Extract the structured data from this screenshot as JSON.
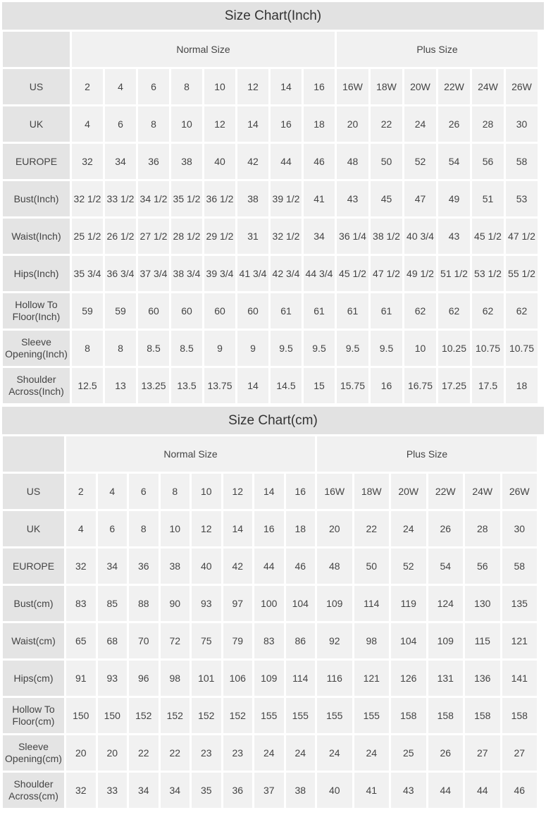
{
  "inch": {
    "title": "Size Chart(Inch)",
    "groups": {
      "normal": "Normal Size",
      "plus": "Plus Size"
    },
    "rows": [
      {
        "label": "US",
        "values": [
          "2",
          "4",
          "6",
          "8",
          "10",
          "12",
          "14",
          "16",
          "16W",
          "18W",
          "20W",
          "22W",
          "24W",
          "26W"
        ]
      },
      {
        "label": "UK",
        "values": [
          "4",
          "6",
          "8",
          "10",
          "12",
          "14",
          "16",
          "18",
          "20",
          "22",
          "24",
          "26",
          "28",
          "30"
        ]
      },
      {
        "label": "EUROPE",
        "values": [
          "32",
          "34",
          "36",
          "38",
          "40",
          "42",
          "44",
          "46",
          "48",
          "50",
          "52",
          "54",
          "56",
          "58"
        ]
      },
      {
        "label": "Bust(Inch)",
        "values": [
          "32 1/2",
          "33 1/2",
          "34 1/2",
          "35 1/2",
          "36 1/2",
          "38",
          "39 1/2",
          "41",
          "43",
          "45",
          "47",
          "49",
          "51",
          "53"
        ]
      },
      {
        "label": "Waist(Inch)",
        "values": [
          "25 1/2",
          "26 1/2",
          "27 1/2",
          "28 1/2",
          "29 1/2",
          "31",
          "32 1/2",
          "34",
          "36 1/4",
          "38 1/2",
          "40 3/4",
          "43",
          "45 1/2",
          "47 1/2"
        ]
      },
      {
        "label": "Hips(Inch)",
        "values": [
          "35 3/4",
          "36 3/4",
          "37 3/4",
          "38 3/4",
          "39 3/4",
          "41 3/4",
          "42 3/4",
          "44 3/4",
          "45 1/2",
          "47 1/2",
          "49 1/2",
          "51 1/2",
          "53 1/2",
          "55 1/2"
        ]
      },
      {
        "label": "Hollow To Floor(Inch)",
        "values": [
          "59",
          "59",
          "60",
          "60",
          "60",
          "60",
          "61",
          "61",
          "61",
          "61",
          "62",
          "62",
          "62",
          "62"
        ]
      },
      {
        "label": "Sleeve Opening(Inch)",
        "values": [
          "8",
          "8",
          "8.5",
          "8.5",
          "9",
          "9",
          "9.5",
          "9.5",
          "9.5",
          "9.5",
          "10",
          "10.25",
          "10.75",
          "10.75"
        ]
      },
      {
        "label": "Shoulder Across(Inch)",
        "values": [
          "12.5",
          "13",
          "13.25",
          "13.5",
          "13.75",
          "14",
          "14.5",
          "15",
          "15.75",
          "16",
          "16.75",
          "17.25",
          "17.5",
          "18"
        ]
      }
    ]
  },
  "cm": {
    "title": "Size Chart(cm)",
    "groups": {
      "normal": "Normal Size",
      "plus": "Plus Size"
    },
    "rows": [
      {
        "label": "US",
        "values": [
          "2",
          "4",
          "6",
          "8",
          "10",
          "12",
          "14",
          "16",
          "16W",
          "18W",
          "20W",
          "22W",
          "24W",
          "26W"
        ]
      },
      {
        "label": "UK",
        "values": [
          "4",
          "6",
          "8",
          "10",
          "12",
          "14",
          "16",
          "18",
          "20",
          "22",
          "24",
          "26",
          "28",
          "30"
        ]
      },
      {
        "label": "EUROPE",
        "values": [
          "32",
          "34",
          "36",
          "38",
          "40",
          "42",
          "44",
          "46",
          "48",
          "50",
          "52",
          "54",
          "56",
          "58"
        ]
      },
      {
        "label": "Bust(cm)",
        "values": [
          "83",
          "85",
          "88",
          "90",
          "93",
          "97",
          "100",
          "104",
          "109",
          "114",
          "119",
          "124",
          "130",
          "135"
        ]
      },
      {
        "label": "Waist(cm)",
        "values": [
          "65",
          "68",
          "70",
          "72",
          "75",
          "79",
          "83",
          "86",
          "92",
          "98",
          "104",
          "109",
          "115",
          "121"
        ]
      },
      {
        "label": "Hips(cm)",
        "values": [
          "91",
          "93",
          "96",
          "98",
          "101",
          "106",
          "109",
          "114",
          "116",
          "121",
          "126",
          "131",
          "136",
          "141"
        ]
      },
      {
        "label": "Hollow To Floor(cm)",
        "values": [
          "150",
          "150",
          "152",
          "152",
          "152",
          "152",
          "155",
          "155",
          "155",
          "155",
          "158",
          "158",
          "158",
          "158"
        ]
      },
      {
        "label": "Sleeve Opening(cm)",
        "values": [
          "20",
          "20",
          "22",
          "22",
          "23",
          "23",
          "24",
          "24",
          "24",
          "24",
          "25",
          "26",
          "27",
          "27"
        ]
      },
      {
        "label": "Shoulder Across(cm)",
        "values": [
          "32",
          "33",
          "34",
          "34",
          "35",
          "36",
          "37",
          "38",
          "40",
          "41",
          "43",
          "44",
          "44",
          "46"
        ]
      }
    ]
  }
}
